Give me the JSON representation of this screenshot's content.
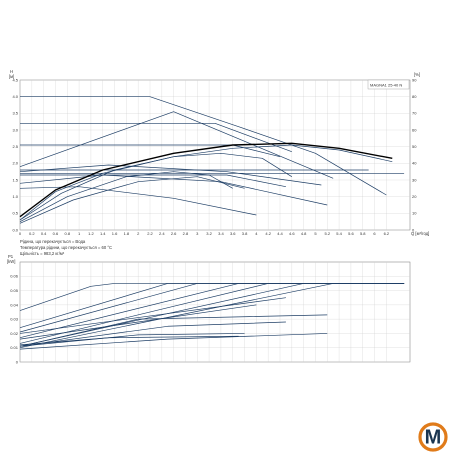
{
  "chart_data": [
    {
      "type": "line",
      "title": "MAGNA1 25-40 N",
      "y_unit_symbol": "H",
      "y_unit": "[м]",
      "y2_unit": "[%]",
      "x_unit": "Q [м³/год]",
      "xlim": [
        0,
        6.6
      ],
      "ylim": [
        0,
        4.5
      ],
      "y2lim": [
        0,
        90
      ],
      "x_ticks": [
        0,
        0.2,
        0.4,
        0.6,
        0.8,
        1.0,
        1.2,
        1.4,
        1.6,
        1.8,
        2.0,
        2.2,
        2.4,
        2.6,
        2.8,
        3.0,
        3.2,
        3.4,
        3.6,
        3.8,
        4.0,
        4.2,
        4.4,
        4.6,
        4.8,
        5.0,
        5.2,
        5.4,
        5.6,
        5.8,
        6.0,
        6.2
      ],
      "y_ticks": [
        0,
        0.5,
        1.0,
        1.5,
        2.0,
        2.5,
        3.0,
        3.5,
        4.0,
        4.5
      ],
      "y2_ticks": [
        0,
        10,
        20,
        30,
        40,
        50,
        60,
        70,
        80,
        90
      ],
      "notes": [
        "Рідина, що перекачується = Вода",
        "Температура рідини, що перекачується = 60 °C",
        "Щільність = 983,2 кг/м³"
      ],
      "grid": true,
      "series": [
        {
          "x": [
            0,
            2.2,
            3.7,
            5.0,
            6.2
          ],
          "y": [
            4.0,
            4.0,
            3.1,
            2.3,
            1.05
          ]
        },
        {
          "x": [
            0,
            2.6,
            5.3
          ],
          "y": [
            1.9,
            3.55,
            1.55
          ]
        },
        {
          "x": [
            0,
            3.3,
            4.6
          ],
          "y": [
            3.2,
            3.2,
            2.35
          ]
        },
        {
          "x": [
            0,
            3.6,
            4.4
          ],
          "y": [
            2.55,
            2.55,
            2.2
          ]
        },
        {
          "x": [
            0,
            6.5
          ],
          "y": [
            1.7,
            1.7
          ]
        },
        {
          "x": [
            0,
            5.9
          ],
          "y": [
            1.8,
            1.8
          ]
        },
        {
          "x": [
            0,
            1.5,
            3.5,
            5.1
          ],
          "y": [
            1.75,
            1.95,
            1.75,
            1.35
          ]
        },
        {
          "x": [
            0,
            3.5,
            4.5
          ],
          "y": [
            1.65,
            1.65,
            1.3
          ]
        },
        {
          "x": [
            0,
            1.4,
            3.4,
            5.2
          ],
          "y": [
            1.4,
            1.65,
            1.45,
            0.75
          ]
        },
        {
          "x": [
            0,
            1.0,
            2.6,
            4.0
          ],
          "y": [
            1.25,
            1.3,
            0.95,
            0.45
          ]
        },
        {
          "x": [
            0,
            0.6,
            1.4,
            2.6,
            3.6,
            4.6,
            5.4,
            6.3
          ],
          "y": [
            0.4,
            1.2,
            1.8,
            2.3,
            2.55,
            2.6,
            2.45,
            2.15
          ]
        },
        {
          "x": [
            0,
            0.6,
            1.4,
            2.6,
            3.6,
            4.6,
            5.4,
            6.3
          ],
          "y": [
            0.3,
            1.15,
            1.7,
            2.2,
            2.45,
            2.55,
            2.4,
            2.05
          ]
        },
        {
          "x": [
            0,
            0.7,
            1.6,
            2.6,
            3.4,
            4.1,
            4.6
          ],
          "y": [
            0.3,
            1.1,
            1.8,
            2.2,
            2.3,
            2.15,
            1.6
          ]
        },
        {
          "x": [
            0,
            0.8,
            1.8,
            2.6,
            3.2,
            3.6
          ],
          "y": [
            0.25,
            1.0,
            1.6,
            1.75,
            1.65,
            1.25
          ]
        },
        {
          "x": [
            0,
            0.9,
            2.0,
            3.0,
            3.8
          ],
          "y": [
            0.2,
            0.9,
            1.45,
            1.6,
            1.25
          ]
        }
      ]
    },
    {
      "type": "line",
      "y_unit_symbol": "P1",
      "y_unit": "[kW]",
      "xlim": [
        0,
        6.6
      ],
      "ylim": [
        0,
        0.07
      ],
      "y_ticks": [
        0,
        0.01,
        0.02,
        0.03,
        0.04,
        0.05,
        0.06
      ],
      "grid": true,
      "series": [
        {
          "x": [
            0,
            1.2,
            1.6,
            6.5
          ],
          "y": [
            0.036,
            0.053,
            0.055,
            0.055
          ]
        },
        {
          "x": [
            0,
            2.5,
            6.5
          ],
          "y": [
            0.024,
            0.055,
            0.055
          ]
        },
        {
          "x": [
            0,
            3.0,
            6.5
          ],
          "y": [
            0.021,
            0.055,
            0.055
          ]
        },
        {
          "x": [
            0,
            3.7,
            6.5
          ],
          "y": [
            0.017,
            0.055,
            0.055
          ]
        },
        {
          "x": [
            0,
            4.2,
            6.5
          ],
          "y": [
            0.013,
            0.055,
            0.055
          ]
        },
        {
          "x": [
            0,
            4.8,
            6.5
          ],
          "y": [
            0.011,
            0.055,
            0.055
          ]
        },
        {
          "x": [
            0,
            5.3,
            6.5
          ],
          "y": [
            0.01,
            0.055,
            0.055
          ]
        },
        {
          "x": [
            0,
            4.5
          ],
          "y": [
            0.02,
            0.045
          ]
        },
        {
          "x": [
            0,
            4.0
          ],
          "y": [
            0.016,
            0.04
          ]
        },
        {
          "x": [
            0,
            2.0,
            5.2
          ],
          "y": [
            0.011,
            0.03,
            0.033
          ]
        },
        {
          "x": [
            0,
            2.5,
            4.5
          ],
          "y": [
            0.011,
            0.025,
            0.028
          ]
        },
        {
          "x": [
            0,
            2.0,
            3.8
          ],
          "y": [
            0.011,
            0.019,
            0.02
          ]
        },
        {
          "x": [
            0,
            2.5,
            5.2
          ],
          "y": [
            0.009,
            0.016,
            0.02
          ]
        },
        {
          "x": [
            0,
            1.5,
            3.7
          ],
          "y": [
            0.012,
            0.017,
            0.018
          ]
        }
      ]
    }
  ],
  "logo": {
    "letter": "M",
    "colors": {
      "primary": "#1a3550",
      "accent": "#e07b1a"
    }
  },
  "colors": {
    "curve": "#1f3f66",
    "duty": "#000000",
    "grid": "#cccccc",
    "axis": "#777777"
  }
}
